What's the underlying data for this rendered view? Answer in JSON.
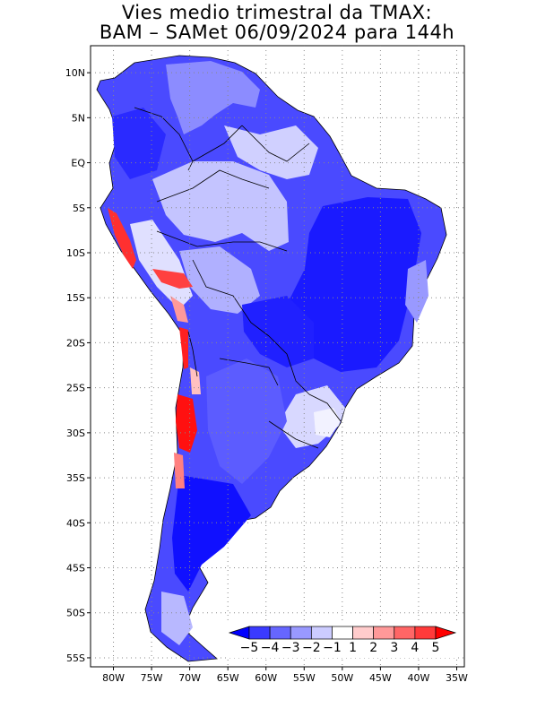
{
  "title": {
    "line1": "Vies medio trimestral da TMAX:",
    "line2": "BAM – SAMet 06/09/2024  para 144h"
  },
  "map": {
    "lon_range": [
      -83,
      -34
    ],
    "lat_range": [
      -56,
      13
    ],
    "lon_ticks": [
      {
        "v": -80,
        "label": "80W"
      },
      {
        "v": -75,
        "label": "75W"
      },
      {
        "v": -70,
        "label": "70W"
      },
      {
        "v": -65,
        "label": "65W"
      },
      {
        "v": -60,
        "label": "60W"
      },
      {
        "v": -55,
        "label": "55W"
      },
      {
        "v": -50,
        "label": "50W"
      },
      {
        "v": -45,
        "label": "45W"
      },
      {
        "v": -40,
        "label": "40W"
      },
      {
        "v": -35,
        "label": "35W"
      }
    ],
    "lat_ticks": [
      {
        "v": 10,
        "label": "10N"
      },
      {
        "v": 5,
        "label": "5N"
      },
      {
        "v": 0,
        "label": "EQ"
      },
      {
        "v": -5,
        "label": "5S"
      },
      {
        "v": -10,
        "label": "10S"
      },
      {
        "v": -15,
        "label": "15S"
      },
      {
        "v": -20,
        "label": "20S"
      },
      {
        "v": -25,
        "label": "25S"
      },
      {
        "v": -30,
        "label": "30S"
      },
      {
        "v": -35,
        "label": "35S"
      },
      {
        "v": -40,
        "label": "40S"
      },
      {
        "v": -45,
        "label": "45S"
      },
      {
        "v": -50,
        "label": "50S"
      },
      {
        "v": -55,
        "label": "55S"
      }
    ],
    "grid": "dotted"
  },
  "colorbar": {
    "labels": [
      "−5",
      "−4",
      "−3",
      "−2",
      "−1",
      "1",
      "2",
      "3",
      "4",
      "5"
    ],
    "colors": [
      "#0000ff",
      "#3a3aff",
      "#6666ff",
      "#9999ff",
      "#ccccff",
      "#ffffff",
      "#ffcccc",
      "#ff9999",
      "#ff6666",
      "#ff3a3a",
      "#ff0000"
    ]
  },
  "colors": {
    "deep_blue": "#1a1aff",
    "mid_blue": "#5c5cff",
    "light_blue": "#a8a8ff",
    "pale_blue": "#d4d4ff",
    "red": "#ff2020",
    "pink": "#ff9090"
  }
}
